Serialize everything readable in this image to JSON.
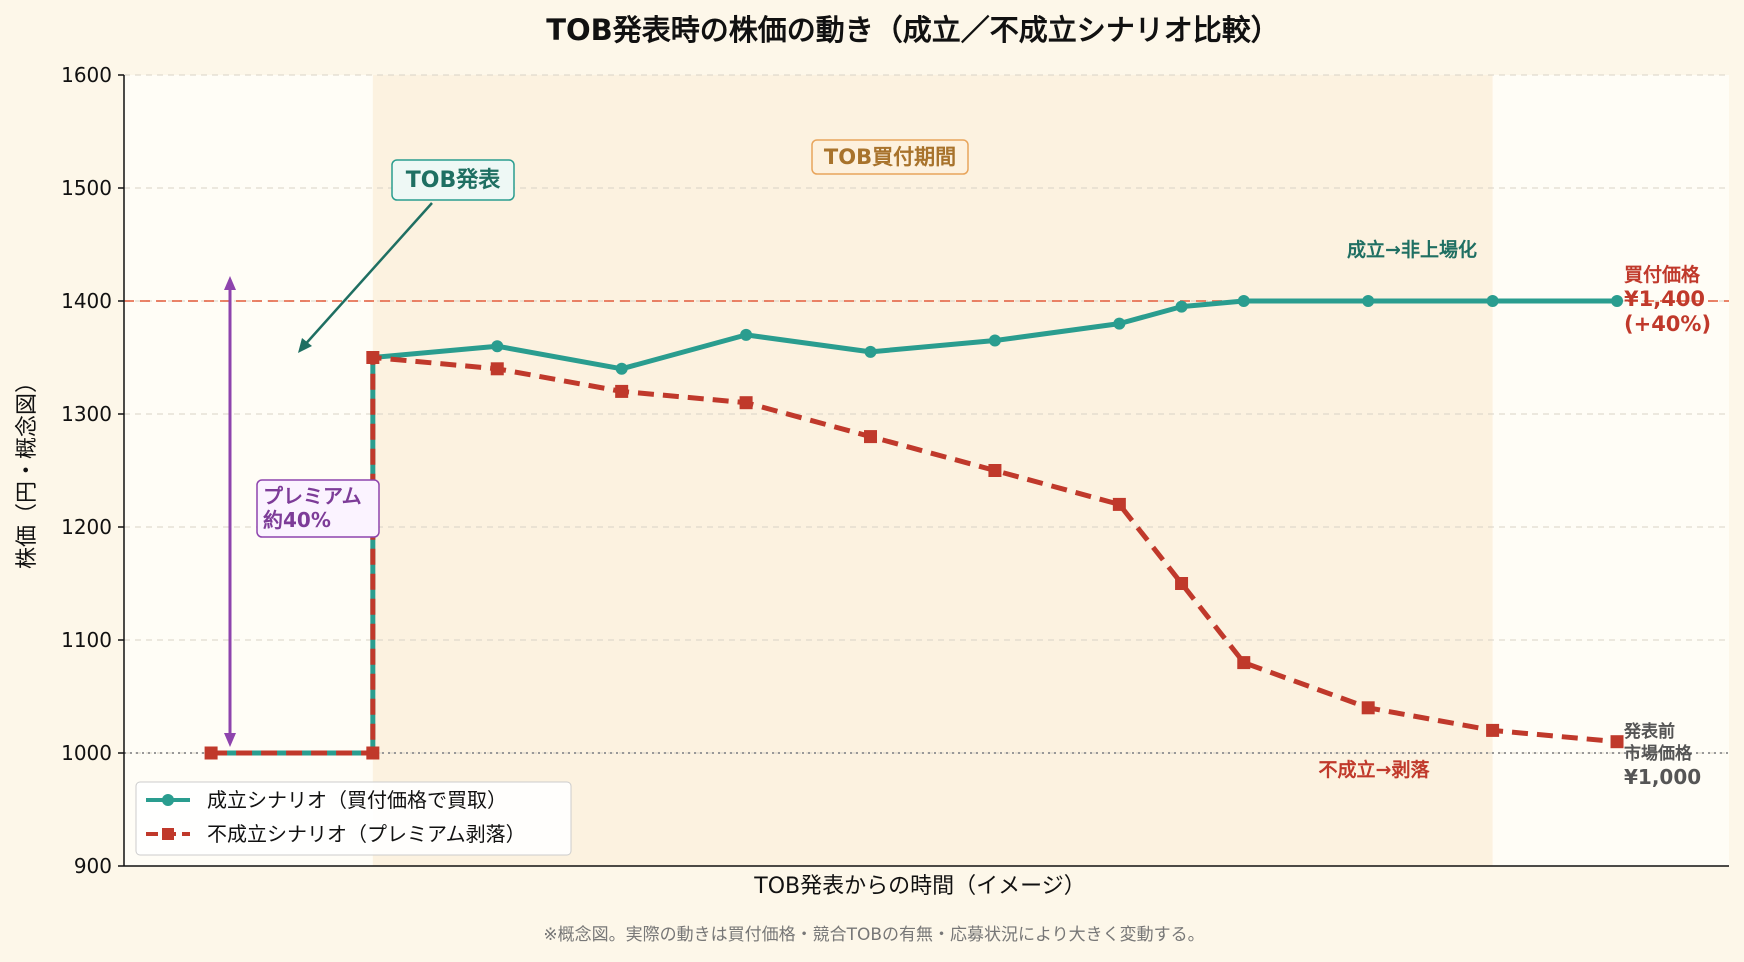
{
  "colors": {
    "page_bg": "#fdf7e9",
    "plot_bg": "#fffdf6",
    "period_band": "#fcf2e0",
    "success": "#2a9d8f",
    "success_dark": "#1f6f62",
    "fail": "#c0392b",
    "offer_line": "#e76f51",
    "premium": "#8e44ad",
    "period_label": "#a8732c",
    "prev_price": "#555555"
  },
  "chart_data": {
    "type": "line",
    "title": "TOB発表時の株価の動き（成立／不成立シナリオ比較）",
    "xlabel": "TOB発表からの時間（イメージ）",
    "ylabel": "株価（円・概念図）",
    "ylim": [
      900,
      1600
    ],
    "yticks": [
      "900",
      "1000",
      "1100",
      "1200",
      "1300",
      "1400",
      "1500",
      "1600"
    ],
    "xlim": [
      -1,
      11.9
    ],
    "grid": "y-dashed",
    "legend_position": "lower-left",
    "period_band": [
      1,
      10
    ],
    "series": [
      {
        "name": "成立シナリオ（買付価格で買取）",
        "style": "solid-circle",
        "points": [
          [
            -0.3,
            1000
          ],
          [
            1,
            1000
          ],
          [
            1,
            1350
          ],
          [
            2,
            1360
          ],
          [
            3,
            1340
          ],
          [
            4,
            1370
          ],
          [
            5,
            1355
          ],
          [
            6,
            1365
          ],
          [
            7,
            1380
          ],
          [
            7.5,
            1395
          ],
          [
            8,
            1400
          ],
          [
            9,
            1400
          ],
          [
            10,
            1400
          ],
          [
            11,
            1400
          ]
        ]
      },
      {
        "name": "不成立シナリオ（プレミアム剥落）",
        "style": "dashed-square",
        "points": [
          [
            -0.3,
            1000
          ],
          [
            1,
            1000
          ],
          [
            1,
            1350
          ],
          [
            2,
            1340
          ],
          [
            3,
            1320
          ],
          [
            4,
            1310
          ],
          [
            5,
            1280
          ],
          [
            6,
            1250
          ],
          [
            7,
            1220
          ],
          [
            7.5,
            1150
          ],
          [
            8,
            1080
          ],
          [
            9,
            1040
          ],
          [
            10,
            1020
          ],
          [
            11,
            1010
          ]
        ]
      }
    ],
    "reference_lines": [
      {
        "y": 1400,
        "style": "dashed"
      },
      {
        "y": 1000,
        "style": "dotted"
      }
    ],
    "annotations": {
      "tob_announce": "TOB発表",
      "period": "TOB買付期間",
      "success_outcome": "成立→非上場化",
      "fail_outcome": "不成立→剥落",
      "premium": [
        "プレミアム",
        "約40%"
      ],
      "offer_price": [
        "買付価格",
        "¥1,400",
        "(+40%)"
      ],
      "prev_price": [
        "発表前",
        "市場価格",
        "¥1,000"
      ]
    },
    "note": "※概念図。実際の動きは買付価格・競合TOBの有無・応募状況により大きく変動する。"
  }
}
